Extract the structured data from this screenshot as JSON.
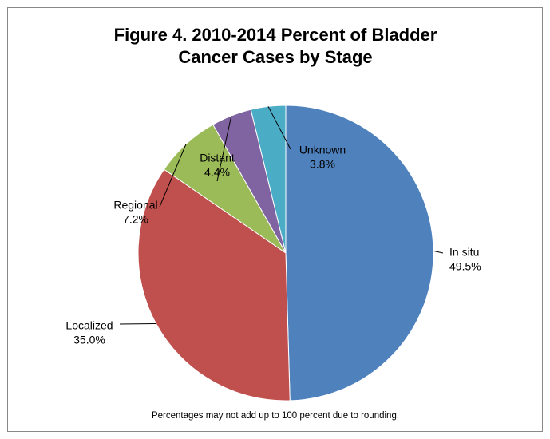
{
  "chart_data": {
    "type": "pie",
    "title": "Figure 4. 2010-2014 Percent of Bladder Cancer Cases by Stage",
    "categories": [
      "In situ",
      "Localized",
      "Regional",
      "Distant",
      "Unknown"
    ],
    "values": [
      49.5,
      35.0,
      7.2,
      4.4,
      3.8
    ],
    "value_labels": [
      "49.5%",
      "35.0%",
      "7.2%",
      "4.4%",
      "3.8%"
    ],
    "colors": [
      "#4f81bd",
      "#c0504d",
      "#9bbb59",
      "#8064a2",
      "#4bacc6"
    ],
    "note": "Percentages may not add up to 100 percent due to rounding."
  }
}
